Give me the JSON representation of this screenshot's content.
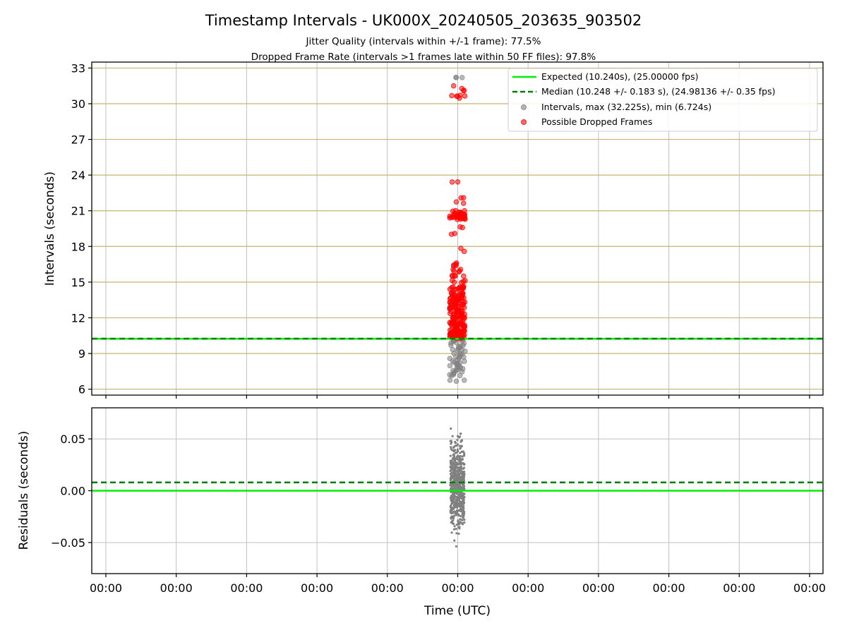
{
  "chart_data": {
    "type": "scatter",
    "title": "Timestamp Intervals - UK000X_20240505_203635_903502",
    "subtitle_lines": [
      "Jitter Quality (intervals within +/-1 frame): 77.5%",
      "Dropped Frame Rate (intervals >1 frames late within 50 FF files): 97.8%"
    ],
    "xlabel": "Time (UTC)",
    "x_tick_labels": [
      "00:00",
      "00:00",
      "00:00",
      "00:00",
      "00:00",
      "00:00",
      "00:00",
      "00:00",
      "00:00",
      "00:00",
      "00:00"
    ],
    "grid": true,
    "legend_position": "top-right",
    "colors": {
      "expected": "#00ee00",
      "median": "#008000",
      "intervals": "#808080",
      "dropped": "#ff0000",
      "grid_top": "#c8b370",
      "grid_bottom": "#c0c0c0"
    },
    "top_panel": {
      "ylabel": "Intervals (seconds)",
      "ylim": [
        5.5,
        33.5
      ],
      "yticks": [
        6,
        9,
        12,
        15,
        18,
        21,
        24,
        27,
        30,
        33
      ],
      "expected_interval": 10.24,
      "median_interval": 10.248,
      "legend": [
        {
          "label": "Expected (10.240s), (25.00000 fps)",
          "style": "solid-line",
          "color": "#00ee00"
        },
        {
          "label": "Median (10.248 +/- 0.183 s), (24.98136 +/- 0.35 fps)",
          "style": "dashed-line",
          "color": "#008000"
        },
        {
          "label": "Intervals, max (32.225s), min (6.724s)",
          "style": "dot",
          "color": "#808080"
        },
        {
          "label": "Possible Dropped Frames",
          "style": "dot",
          "color": "#ff0000"
        }
      ],
      "intervals_max": 32.225,
      "intervals_min": 6.724,
      "interval_points": [
        6.72,
        7.1,
        7.3,
        7.5,
        7.7,
        7.9,
        8.0,
        8.2,
        8.4,
        8.6,
        8.8,
        9.0,
        9.2,
        9.4,
        9.6,
        9.8,
        10.0,
        10.1,
        32.23
      ],
      "dropped_points": [
        10.4,
        10.6,
        10.8,
        11.0,
        11.3,
        11.6,
        12.0,
        12.4,
        12.8,
        13.2,
        13.6,
        14.0,
        14.5,
        15.0,
        15.5,
        16.0,
        16.5,
        17.7,
        19.0,
        19.5,
        20.2,
        20.4,
        20.5,
        20.6,
        20.9,
        21.7,
        22.2,
        23.4,
        30.6,
        30.7,
        30.8,
        31.2,
        31.4
      ],
      "x_spread_frac": [
        0.485,
        0.5
      ]
    },
    "bottom_panel": {
      "ylabel": "Residuals (seconds)",
      "ylim": [
        -0.08,
        0.08
      ],
      "yticks": [
        -0.05,
        0.0,
        0.05
      ],
      "ytick_labels": [
        "−0.05",
        "0.00",
        "0.05"
      ],
      "expected_residual": 0.0,
      "median_residual": 0.008,
      "residual_range": [
        -0.08,
        0.08
      ]
    }
  }
}
